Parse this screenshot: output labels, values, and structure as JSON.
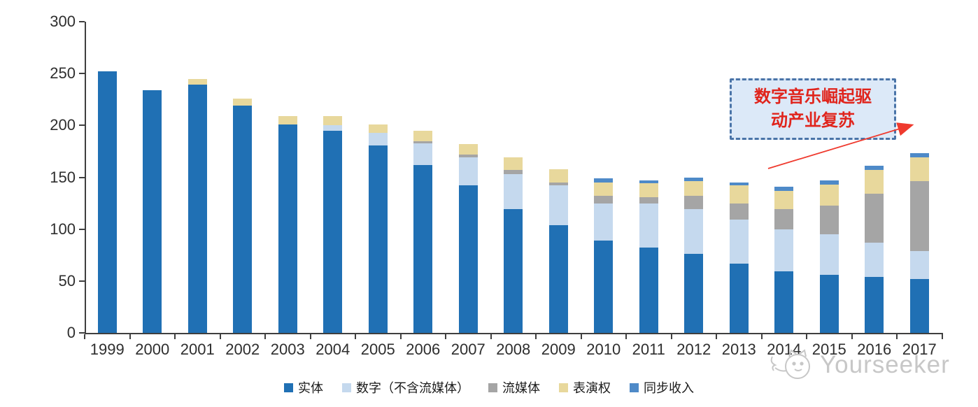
{
  "chart_data": {
    "type": "bar",
    "stacked": true,
    "title": "",
    "xlabel": "",
    "ylabel": "",
    "ylim": [
      0,
      300
    ],
    "yticks": [
      0,
      50,
      100,
      150,
      200,
      250,
      300
    ],
    "grid": false,
    "legend_position": "bottom",
    "categories": [
      "1999",
      "2000",
      "2001",
      "2002",
      "2003",
      "2004",
      "2005",
      "2006",
      "2007",
      "2008",
      "2009",
      "2010",
      "2011",
      "2012",
      "2013",
      "2014",
      "2015",
      "2016",
      "2017"
    ],
    "series": [
      {
        "name": "实体",
        "color": "#2070b4",
        "values": [
          252,
          234,
          239,
          219,
          201,
          195,
          181,
          162,
          142,
          119,
          104,
          89,
          82,
          76,
          67,
          59,
          56,
          54,
          52
        ]
      },
      {
        "name": "数字（不含流媒体）",
        "color": "#c5d9ee",
        "values": [
          0,
          0,
          0,
          0,
          0,
          5,
          12,
          21,
          27,
          34,
          38,
          36,
          43,
          43,
          42,
          41,
          39,
          33,
          27
        ]
      },
      {
        "name": "流媒体",
        "color": "#a5a5a5",
        "values": [
          0,
          0,
          0,
          0,
          0,
          0,
          0,
          2,
          3,
          4,
          3,
          7,
          6,
          13,
          16,
          19,
          28,
          47,
          67
        ]
      },
      {
        "name": "表演权",
        "color": "#e8d89c",
        "values": [
          0,
          0,
          6,
          7,
          8,
          9,
          8,
          10,
          10,
          12,
          13,
          13,
          13,
          14,
          17,
          18,
          20,
          23,
          23
        ]
      },
      {
        "name": "同步收入",
        "color": "#4e8ac8",
        "values": [
          0,
          0,
          0,
          0,
          0,
          0,
          0,
          0,
          0,
          0,
          0,
          4,
          3,
          4,
          3,
          4,
          4,
          4,
          4
        ]
      }
    ],
    "totals": [
      252,
      234,
      245,
      226,
      209,
      209,
      201,
      195,
      182,
      169,
      158,
      149,
      147,
      150,
      145,
      141,
      147,
      161,
      173
    ]
  },
  "annotation": {
    "line1": "数字音乐崛起驱",
    "line2": "动产业复苏",
    "text_color": "#e0241c",
    "border_color": "#4a74a8",
    "fill_color": "#dce9f8",
    "arrow_color": "#ef3a2e"
  },
  "watermark": {
    "text": "Yourseeker"
  }
}
